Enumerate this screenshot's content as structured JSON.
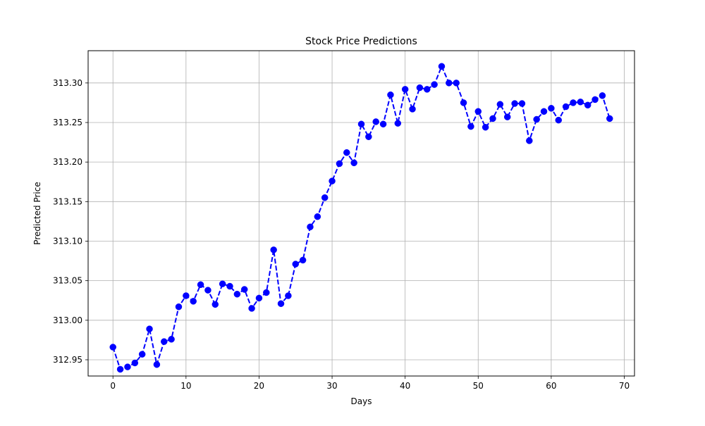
{
  "chart_data": {
    "type": "line",
    "title": "Stock Price Predictions",
    "xlabel": "Days",
    "ylabel": "Predicted Price",
    "xlim": [
      -3.4,
      71.4
    ],
    "ylim": [
      312.9295,
      313.3408
    ],
    "xticks": [
      0,
      10,
      20,
      30,
      40,
      50,
      60,
      70
    ],
    "yticks": [
      312.95,
      313.0,
      313.05,
      313.1,
      313.15,
      313.2,
      313.25,
      313.3
    ],
    "ytick_labels": [
      "312.95",
      "313.00",
      "313.05",
      "313.10",
      "313.15",
      "313.20",
      "313.25",
      "313.30"
    ],
    "grid": true,
    "series": [
      {
        "color": "#0000ff",
        "line_style": "dashed",
        "marker": "circle",
        "x": [
          0,
          1,
          2,
          3,
          4,
          5,
          6,
          7,
          8,
          9,
          10,
          11,
          12,
          13,
          14,
          15,
          16,
          17,
          18,
          19,
          20,
          21,
          22,
          23,
          24,
          25,
          26,
          27,
          28,
          29,
          30,
          31,
          32,
          33,
          34,
          35,
          36,
          37,
          38,
          39,
          40,
          41,
          42,
          43,
          44,
          45,
          46,
          47,
          48,
          49,
          50,
          51,
          52,
          53,
          54,
          55,
          56,
          57,
          58,
          59,
          60,
          61,
          62,
          63,
          64,
          65,
          66,
          67,
          68
        ],
        "values": [
          312.966,
          312.938,
          312.941,
          312.946,
          312.957,
          312.989,
          312.944,
          312.973,
          312.976,
          313.017,
          313.031,
          313.024,
          313.045,
          313.038,
          313.02,
          313.046,
          313.043,
          313.033,
          313.039,
          313.015,
          313.028,
          313.035,
          313.089,
          313.021,
          313.031,
          313.071,
          313.076,
          313.118,
          313.131,
          313.155,
          313.176,
          313.198,
          313.212,
          313.199,
          313.248,
          313.232,
          313.251,
          313.248,
          313.285,
          313.249,
          313.292,
          313.267,
          313.294,
          313.292,
          313.298,
          313.321,
          313.3,
          313.3,
          313.275,
          313.245,
          313.264,
          313.244,
          313.255,
          313.273,
          313.257,
          313.274,
          313.274,
          313.227,
          313.254,
          313.264,
          313.268,
          313.253,
          313.27,
          313.275,
          313.276,
          313.272,
          313.279,
          313.284,
          313.255
        ]
      }
    ]
  }
}
